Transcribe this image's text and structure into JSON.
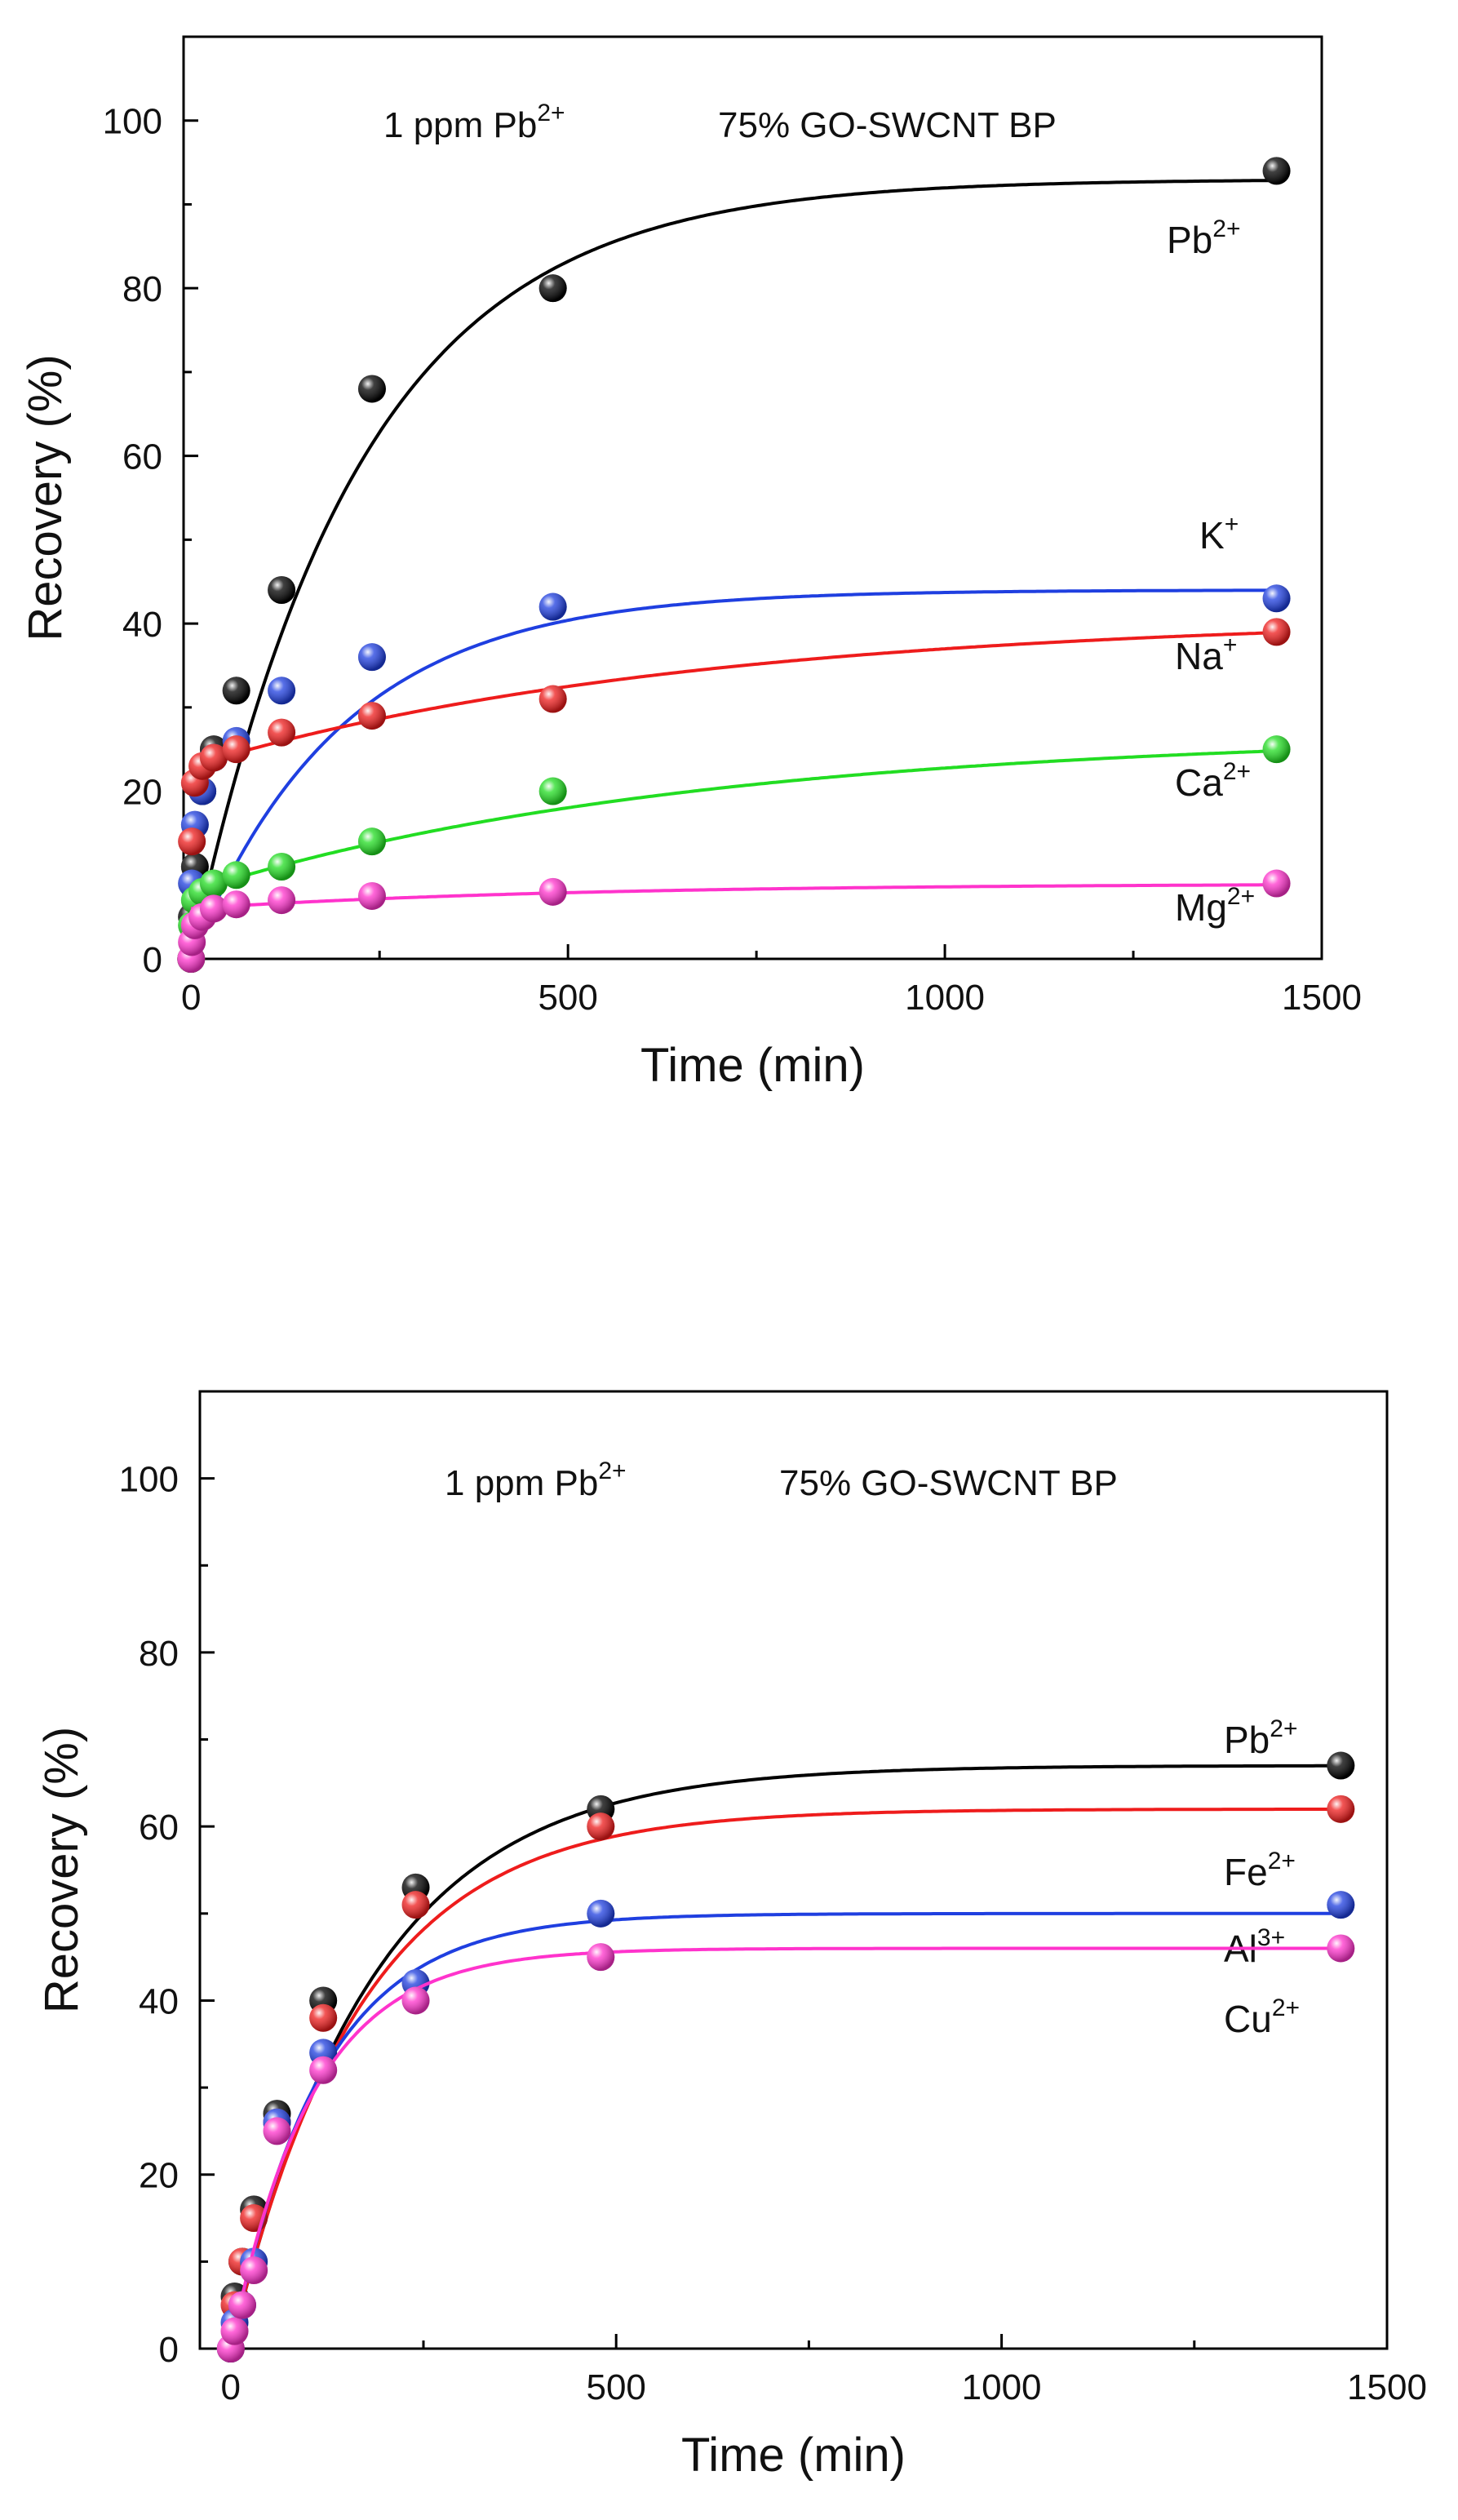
{
  "chart_data": [
    {
      "id": "panel-a",
      "type": "scatter",
      "title": "",
      "annotations": [
        "1 ppm Pb",
        "2+",
        "75% GO-SWCNT BP"
      ],
      "xlabel": "Time (min)",
      "ylabel": "Recovery (%)",
      "xlim": [
        -10,
        1500
      ],
      "ylim": [
        0,
        110
      ],
      "xticks": [
        0,
        500,
        1000,
        1500
      ],
      "yticks": [
        0,
        20,
        40,
        60,
        80,
        100
      ],
      "grid": false,
      "legend": "none",
      "series": [
        {
          "name": "Pb",
          "charge": "2+",
          "color": "#000000",
          "x": [
            0,
            1,
            5,
            15,
            30,
            60,
            120,
            240,
            480,
            1440
          ],
          "y": [
            0,
            5,
            11,
            20,
            25,
            32,
            44,
            68,
            80,
            94
          ],
          "fit": {
            "a": 93,
            "k": 0.0045
          }
        },
        {
          "name": "K",
          "charge": "+",
          "color": "#1f3fe0",
          "x": [
            0,
            1,
            5,
            15,
            30,
            60,
            120,
            240,
            480,
            1440
          ],
          "y": [
            0,
            9,
            16,
            20,
            24,
            26,
            32,
            36,
            42,
            43
          ],
          "fit": {
            "a": 44,
            "k": 0.005
          }
        },
        {
          "name": "Na",
          "charge": "+",
          "color": "#ee1c1c",
          "x": [
            0,
            1,
            5,
            15,
            30,
            60,
            120,
            240,
            480,
            1440
          ],
          "y": [
            0,
            14,
            21,
            23,
            24,
            25,
            27,
            29,
            31,
            39
          ],
          "fit": {
            "a0": 23,
            "a": 18,
            "k": 0.0015
          }
        },
        {
          "name": "Ca",
          "charge": "2+",
          "color": "#22dd22",
          "x": [
            0,
            1,
            5,
            15,
            30,
            60,
            120,
            240,
            480,
            1440
          ],
          "y": [
            0,
            4,
            7,
            8,
            9,
            10,
            11,
            14,
            20,
            25
          ],
          "fit": {
            "a0": 8,
            "a": 19,
            "k": 0.0015
          }
        },
        {
          "name": "Mg",
          "charge": "2+",
          "color": "#ff33cc",
          "x": [
            0,
            1,
            5,
            15,
            30,
            60,
            120,
            240,
            480,
            1440
          ],
          "y": [
            0,
            2,
            4,
            5,
            6,
            6.5,
            7,
            7.5,
            8,
            9
          ],
          "fit": {
            "a0": 6,
            "a": 3,
            "k": 0.002
          }
        }
      ]
    },
    {
      "id": "panel-b",
      "type": "scatter",
      "title": "",
      "annotations": [
        "1 ppm Pb",
        "2+",
        "75% GO-SWCNT BP"
      ],
      "xlabel": "Time (min)",
      "ylabel": "Recovery (%)",
      "xlim": [
        -40,
        1500
      ],
      "ylim": [
        0,
        110
      ],
      "xticks": [
        0,
        500,
        1000,
        1500
      ],
      "yticks": [
        0,
        20,
        40,
        60,
        80,
        100
      ],
      "grid": false,
      "legend": "none",
      "series": [
        {
          "name": "Pb",
          "charge": "2+",
          "color": "#000000",
          "x": [
            0,
            5,
            15,
            30,
            60,
            120,
            240,
            480,
            1440
          ],
          "y": [
            0,
            6,
            10,
            16,
            27,
            40,
            53,
            62,
            67
          ],
          "fit": {
            "a": 67,
            "k": 0.0055
          }
        },
        {
          "name": "Fe",
          "charge": "2+",
          "color": "#ee1c1c",
          "x": [
            0,
            5,
            15,
            30,
            60,
            120,
            240,
            480,
            1440
          ],
          "y": [
            0,
            5,
            10,
            15,
            26,
            38,
            51,
            60,
            62
          ],
          "fit": {
            "a": 62,
            "k": 0.006
          }
        },
        {
          "name": "Al",
          "charge": "3+",
          "color": "#1f3fe0",
          "x": [
            0,
            5,
            15,
            30,
            60,
            120,
            240,
            480,
            1440
          ],
          "y": [
            0,
            3,
            5,
            10,
            26,
            34,
            42,
            50,
            51
          ],
          "fit": {
            "a": 50,
            "k": 0.0085
          }
        },
        {
          "name": "Cu",
          "charge": "2+",
          "color": "#ff33cc",
          "x": [
            0,
            5,
            15,
            30,
            60,
            120,
            240,
            480,
            1440
          ],
          "y": [
            0,
            2,
            5,
            9,
            25,
            32,
            40,
            45,
            46
          ],
          "fit": {
            "a": 46,
            "k": 0.0095
          }
        }
      ]
    }
  ]
}
